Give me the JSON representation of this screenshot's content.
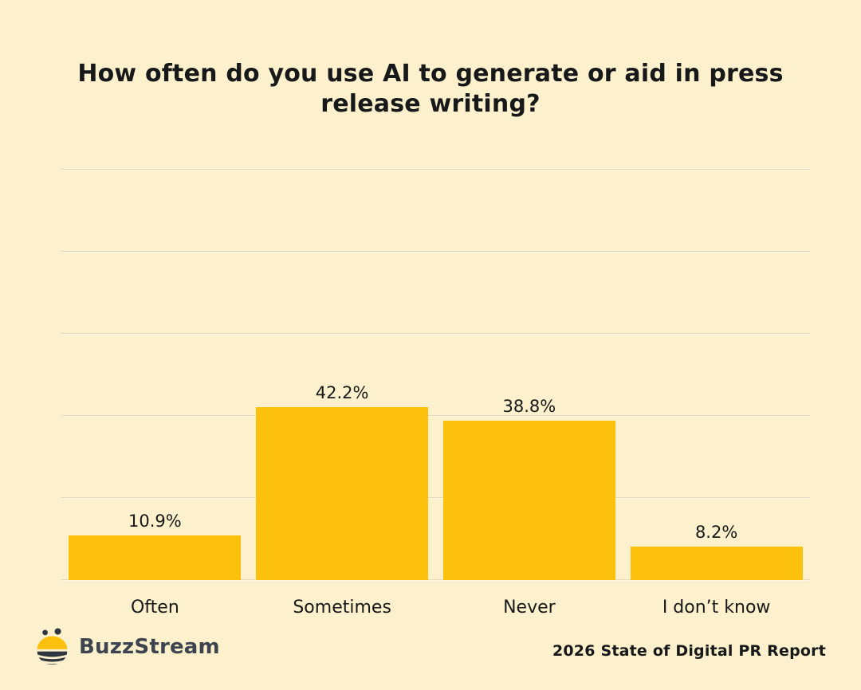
{
  "title": "How often do you use AI to generate or aid in press release writing?",
  "chart_data": {
    "type": "bar",
    "title": "How often do you use AI to generate or aid in press release writing?",
    "categories": [
      "Often",
      "Sometimes",
      "Never",
      "I don’t know"
    ],
    "values": [
      10.9,
      42.2,
      38.8,
      8.2
    ],
    "value_labels": [
      "10.9%",
      "42.2%",
      "38.8%",
      "8.2%"
    ],
    "xlabel": "",
    "ylabel": "",
    "ylim": [
      0,
      100
    ],
    "gridline_step": 20,
    "grid": true,
    "legend": false,
    "bar_color": "#FDC10D"
  },
  "footer": {
    "brand": "BuzzStream",
    "report": "2026 State of Digital PR Report"
  },
  "colors": {
    "background": "#FCF1CC",
    "bar": "#FDC10D",
    "gridline": "#E2D8BC",
    "text": "#17181A",
    "brand_text": "#3D4450",
    "bee_dark": "#2F3640",
    "bee_yellow": "#FDC10D"
  }
}
